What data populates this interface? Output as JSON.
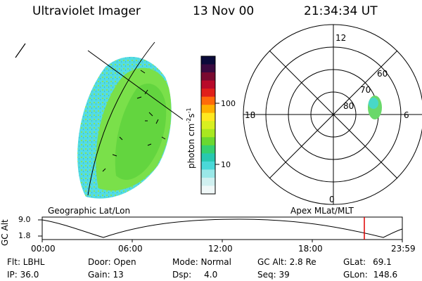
{
  "header": {
    "instrument": "Ultraviolet Imager",
    "date": "13 Nov 00",
    "time": "21:34:34 UT"
  },
  "colorbar": {
    "unit_label": "photon cm",
    "unit_exp1": "-2",
    "unit_s": "s",
    "unit_exp2": "-1",
    "ticks": [
      "100",
      "10"
    ],
    "colors": [
      "#0a0a3a",
      "#3a0a40",
      "#7a0a30",
      "#b80a2a",
      "#e0201a",
      "#ff6a0a",
      "#ffb000",
      "#ffe820",
      "#d8f020",
      "#a8e820",
      "#6ad830",
      "#36d070",
      "#28c8b0",
      "#4ad8d8",
      "#9ae8e8",
      "#d0f0f0",
      "#f0f8f8"
    ]
  },
  "geo_map": {
    "label": "Geographic Lat/Lon",
    "aurora_colors": [
      "#40d8e0",
      "#7ae04a",
      "#5ad03a"
    ]
  },
  "polar_plot": {
    "label": "Apex MLat/MLT",
    "mlt_labels": {
      "top": "12",
      "left": "18",
      "right": "6",
      "bottom": "0"
    },
    "lat_labels": [
      "60",
      "70",
      "80"
    ],
    "spot_color": "#6ad86a"
  },
  "timeline": {
    "y_label": "GC Alt",
    "y_ticks": [
      "9.0",
      "1.8"
    ],
    "x_ticks": [
      "00:00",
      "06:00",
      "12:00",
      "18:00",
      "23:59"
    ],
    "current_marker_color": "#e00000"
  },
  "status": {
    "flt": "Flt: LBHL",
    "ip": "IP: 36.0",
    "door": "Door: Open",
    "gain": "Gain: 13",
    "mode": "Mode: Normal",
    "dsp": "Dsp:",
    "dsp_val": "4.0",
    "gc_alt": "GC Alt: 2.8 Re",
    "seq": "Seq: 39",
    "glat": "GLat:",
    "glat_val": "69.1",
    "glon": "GLon:",
    "glon_val": "148.6"
  }
}
